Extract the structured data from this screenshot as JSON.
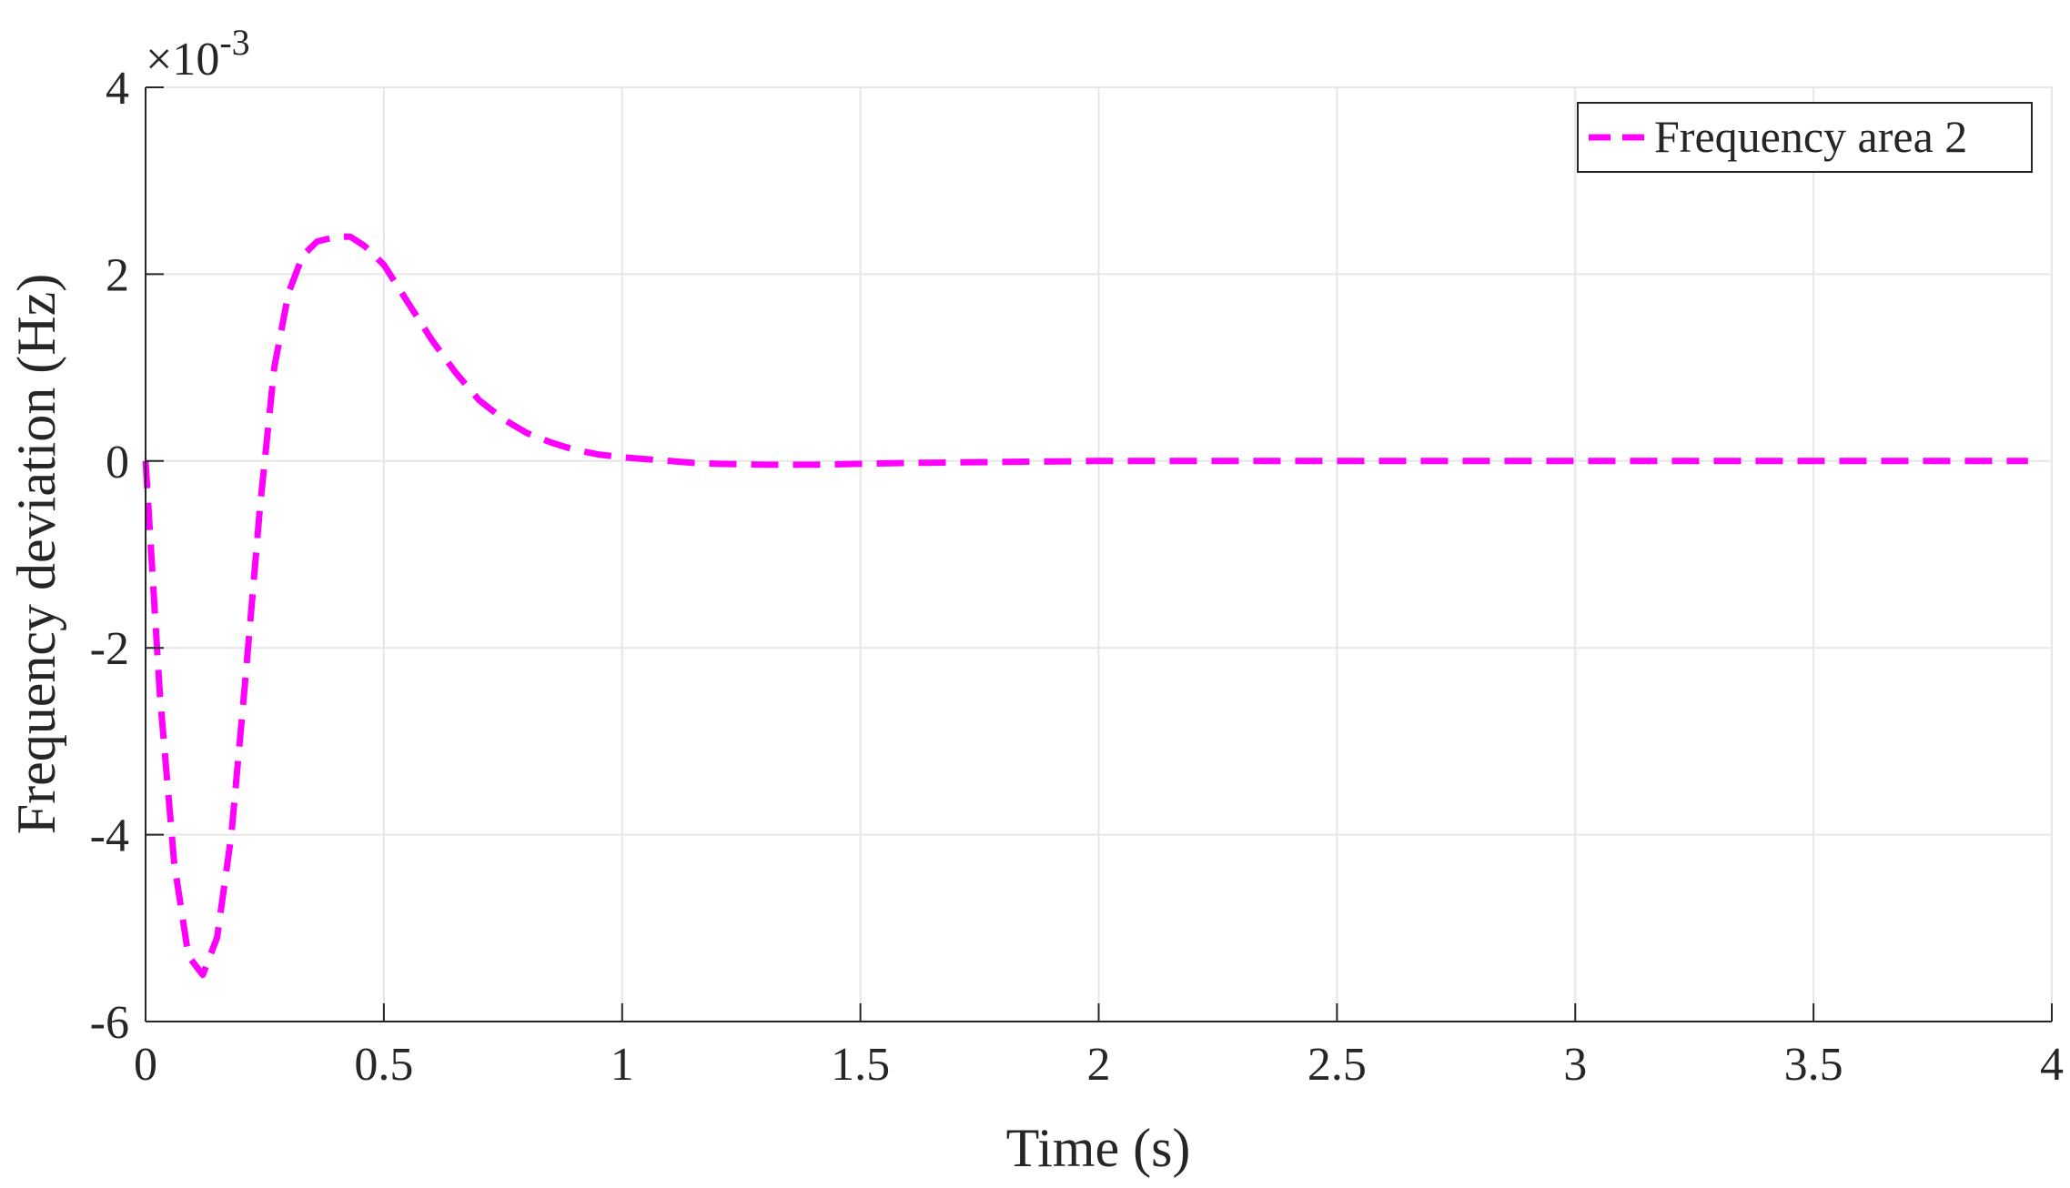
{
  "chart_data": {
    "type": "line",
    "xlabel": "Time (s)",
    "ylabel": "Frequency deviation (Hz)",
    "y_exponent_label": "×10",
    "y_exponent_power": "-3",
    "xlim": [
      0,
      4
    ],
    "ylim": [
      -6,
      4
    ],
    "x_ticks": [
      "0",
      "0.5",
      "1",
      "1.5",
      "2",
      "2.5",
      "3",
      "3.5",
      "4"
    ],
    "y_ticks": [
      "-6",
      "-4",
      "-2",
      "0",
      "2",
      "4"
    ],
    "grid": true,
    "legend_position": "top-right",
    "series": [
      {
        "name": "Frequency area 2",
        "color": "#ff00ff",
        "line_style": "dashed",
        "x": [
          0,
          0.03,
          0.06,
          0.09,
          0.12,
          0.15,
          0.18,
          0.21,
          0.24,
          0.27,
          0.3,
          0.33,
          0.36,
          0.4,
          0.43,
          0.46,
          0.5,
          0.55,
          0.6,
          0.65,
          0.7,
          0.75,
          0.8,
          0.85,
          0.9,
          0.95,
          1.0,
          1.05,
          1.1,
          1.15,
          1.2,
          1.3,
          1.4,
          1.5,
          1.6,
          1.8,
          2.0,
          2.5,
          3.0,
          3.5,
          3.95
        ],
        "values": [
          0,
          -2.5,
          -4.3,
          -5.3,
          -5.5,
          -5.1,
          -4.0,
          -2.3,
          -0.5,
          1.0,
          1.8,
          2.2,
          2.35,
          2.4,
          2.4,
          2.3,
          2.1,
          1.7,
          1.3,
          0.95,
          0.65,
          0.45,
          0.3,
          0.2,
          0.12,
          0.07,
          0.04,
          0.02,
          0.0,
          -0.02,
          -0.03,
          -0.04,
          -0.04,
          -0.03,
          -0.02,
          -0.01,
          0.0,
          0.0,
          0.0,
          0.0,
          0.0
        ]
      }
    ]
  }
}
